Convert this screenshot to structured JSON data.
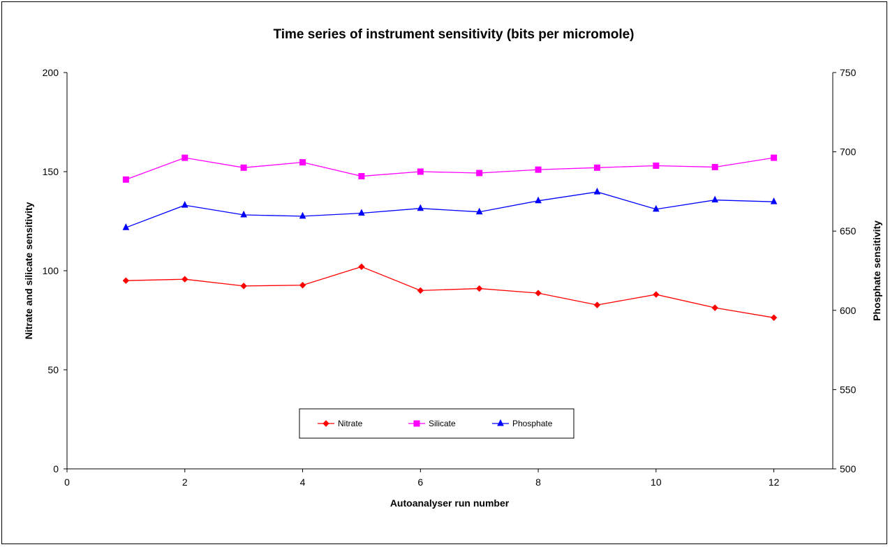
{
  "chart_data": {
    "type": "line",
    "title": "Time series of instrument sensitivity (bits per micromole)",
    "xlabel": "Autoanalyser run number",
    "ylabel_left": "Nitrate and silicate sensitivity",
    "ylabel_right": "Phosphate sensitivity",
    "xlim": [
      0,
      13
    ],
    "ylim_left": [
      0,
      200
    ],
    "ylim_right": [
      500,
      750
    ],
    "x_ticks": [
      0,
      2,
      4,
      6,
      8,
      10,
      12
    ],
    "y_ticks_left": [
      0,
      50,
      100,
      150,
      200
    ],
    "y_ticks_right": [
      500,
      550,
      600,
      650,
      700,
      750
    ],
    "grid": false,
    "legend_position": "bottom-center",
    "x": [
      1,
      2,
      3,
      4,
      5,
      6,
      7,
      8,
      9,
      10,
      11,
      12
    ],
    "series": [
      {
        "name": "Nitrate",
        "axis": "left",
        "color": "#ff0000",
        "marker": "diamond",
        "values": [
          95,
          95.7,
          92.3,
          92.7,
          102,
          90,
          91,
          88.7,
          82.7,
          88,
          81.3,
          76.3
        ]
      },
      {
        "name": "Silicate",
        "axis": "left",
        "color": "#ff00ff",
        "marker": "square",
        "values": [
          146,
          157,
          152,
          154.7,
          147.7,
          150,
          149.3,
          151,
          152,
          153,
          152.3,
          157
        ]
      },
      {
        "name": "Phosphate",
        "axis": "right",
        "color": "#0000ff",
        "marker": "triangle",
        "values": [
          652.2,
          666.3,
          660.2,
          659.4,
          661.3,
          664.3,
          662.1,
          669.1,
          674.7,
          663.8,
          669.6,
          668.5
        ]
      }
    ]
  }
}
